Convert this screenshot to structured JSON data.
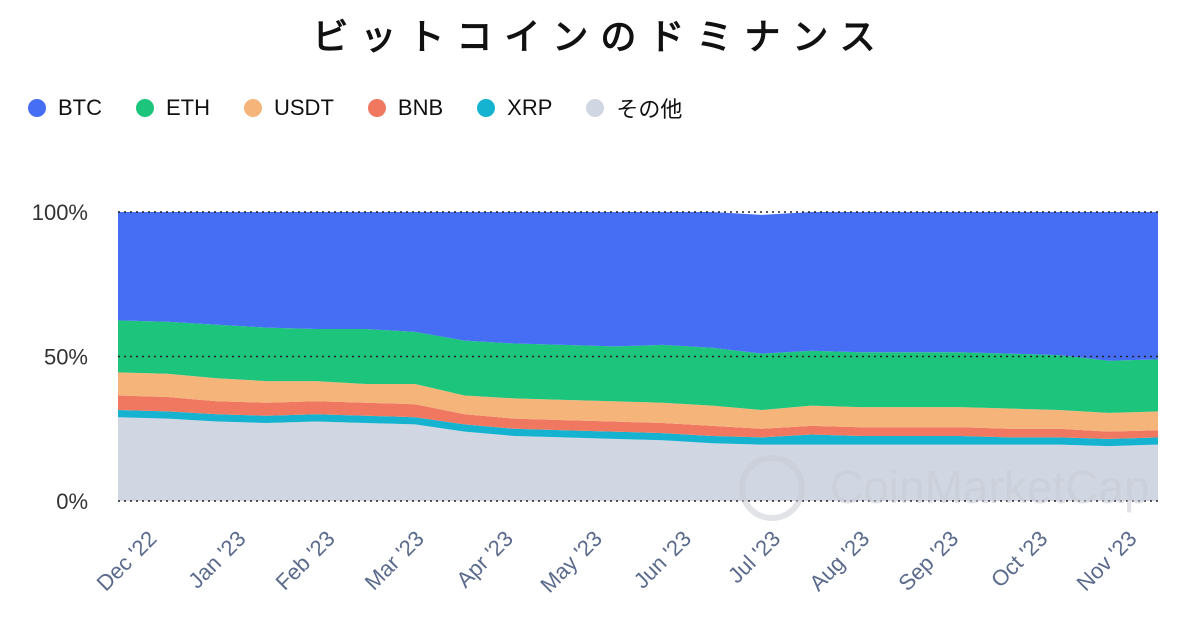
{
  "chart_data": {
    "type": "area",
    "stacked": true,
    "title": "ビットコインのドミナンス",
    "ylim": [
      0,
      100
    ],
    "yticks": [
      "100%",
      "50%",
      "0%"
    ],
    "x_labels": [
      "Dec '22",
      "Jan '23",
      "Feb '23",
      "Mar '23",
      "Apr '23",
      "May '23",
      "Jun '23",
      "Jul '23",
      "Aug '23",
      "Sep '23",
      "Oct '23",
      "Nov '23"
    ],
    "legend_position": "top-left",
    "grid": "dotted horizontal",
    "series": [
      {
        "name": "その他",
        "color": "#d0d6e2",
        "values": [
          29,
          28.5,
          27.5,
          27,
          27.5,
          27,
          26.5,
          24,
          22.5,
          22,
          21.5,
          21,
          20,
          19.5,
          19.5,
          19.5,
          19.5,
          19.5,
          19.5,
          19.5,
          19,
          19.5
        ]
      },
      {
        "name": "XRP",
        "color": "#16b3d0",
        "values": [
          2.5,
          2.5,
          2.5,
          2.5,
          2.5,
          2.5,
          2.5,
          2.5,
          2.5,
          2.5,
          2.5,
          2.5,
          2.5,
          2.5,
          3.5,
          3,
          3,
          3,
          2.5,
          2.5,
          2.5,
          2.5
        ]
      },
      {
        "name": "BNB",
        "color": "#f07860",
        "values": [
          5,
          5,
          4.5,
          4.5,
          4.5,
          4.5,
          4.5,
          3.5,
          3.5,
          3.5,
          3.5,
          3.5,
          3.5,
          3,
          3,
          3,
          3,
          3,
          3,
          3,
          2.5,
          2.5
        ]
      },
      {
        "name": "USDT",
        "color": "#f5b47a",
        "values": [
          8,
          8,
          8,
          7.5,
          7,
          6.5,
          7,
          6.5,
          7,
          7,
          7,
          7,
          7,
          6.5,
          7,
          7,
          7,
          7,
          7,
          6.5,
          6.5,
          6.5
        ]
      },
      {
        "name": "ETH",
        "color": "#1cc47c",
        "values": [
          18,
          18,
          18.5,
          18.5,
          18,
          19,
          18,
          19,
          19,
          19,
          19,
          20,
          20,
          19.5,
          19,
          19,
          19,
          19,
          19,
          19,
          18,
          18
        ]
      },
      {
        "name": "BTC",
        "color": "#466ef5",
        "values": [
          37.5,
          38,
          39,
          40,
          40.5,
          40.5,
          41.5,
          44.5,
          45.5,
          46,
          46.5,
          46,
          47,
          48,
          48,
          48.5,
          48.5,
          48.5,
          49,
          49.5,
          51.5,
          51
        ]
      }
    ]
  },
  "legend_items": [
    {
      "label": "BTC",
      "color": "#466ef5"
    },
    {
      "label": "ETH",
      "color": "#1cc47c"
    },
    {
      "label": "USDT",
      "color": "#f5b47a"
    },
    {
      "label": "BNB",
      "color": "#f07860"
    },
    {
      "label": "XRP",
      "color": "#16b3d0"
    },
    {
      "label": "その他",
      "color": "#d0d6e2"
    }
  ],
  "watermark": "CoinMarketCap"
}
